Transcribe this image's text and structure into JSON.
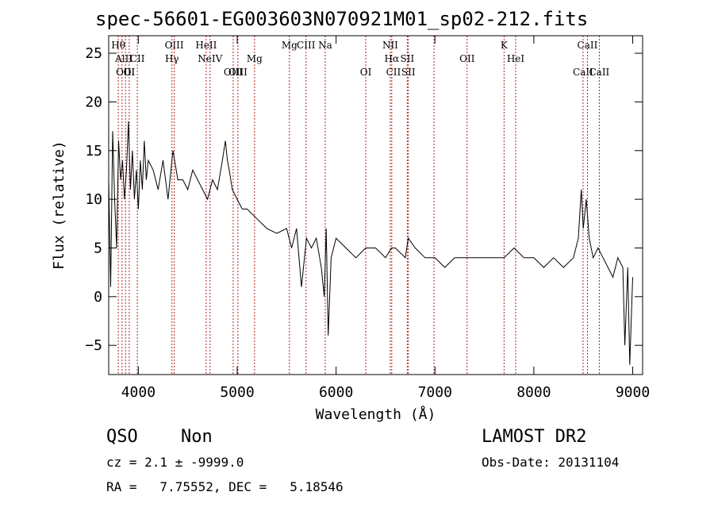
{
  "chart_data": {
    "type": "line",
    "title": "spec-56601-EG003603N070921M01_sp02-212.fits",
    "xlabel": "Wavelength (Å)",
    "ylabel": "Flux (relative)",
    "xlim": [
      3700,
      9100
    ],
    "ylim": [
      -8,
      26.8
    ],
    "xticks": [
      4000,
      5000,
      6000,
      7000,
      8000,
      9000
    ],
    "yticks": [
      -5,
      0,
      5,
      10,
      15,
      20,
      25
    ],
    "grid": false,
    "series": [
      {
        "color": "#000000",
        "x": [
          3700,
          3720,
          3740,
          3760,
          3780,
          3800,
          3820,
          3840,
          3860,
          3880,
          3900,
          3920,
          3940,
          3960,
          3980,
          4000,
          4020,
          4040,
          4060,
          4080,
          4100,
          4150,
          4200,
          4250,
          4300,
          4350,
          4400,
          4450,
          4500,
          4550,
          4600,
          4650,
          4700,
          4750,
          4800,
          4850,
          4880,
          4900,
          4920,
          4950,
          5000,
          5050,
          5100,
          5200,
          5300,
          5400,
          5500,
          5550,
          5600,
          5650,
          5700,
          5750,
          5800,
          5850,
          5880,
          5900,
          5920,
          5950,
          6000,
          6100,
          6200,
          6300,
          6400,
          6500,
          6560,
          6600,
          6700,
          6730,
          6800,
          6900,
          7000,
          7100,
          7200,
          7300,
          7400,
          7500,
          7600,
          7700,
          7800,
          7900,
          8000,
          8100,
          8200,
          8300,
          8400,
          8450,
          8480,
          8500,
          8530,
          8560,
          8600,
          8650,
          8700,
          8750,
          8800,
          8850,
          8900,
          8920,
          8950,
          8970,
          9000
        ],
        "y": [
          12,
          1,
          17,
          10,
          5,
          16,
          12,
          14,
          10,
          13,
          18,
          11,
          15,
          10,
          13,
          9,
          14,
          11,
          16,
          12,
          14,
          13,
          11,
          14,
          10,
          15,
          12,
          12,
          11,
          13,
          12,
          11,
          10,
          12,
          11,
          14,
          16,
          14,
          13,
          11,
          10,
          9,
          9,
          8,
          7,
          6.5,
          7,
          5,
          7,
          1,
          6,
          5,
          6,
          3,
          0,
          7,
          -4,
          4,
          6,
          5,
          4,
          5,
          5,
          4,
          5,
          5,
          4,
          6,
          5,
          4,
          4,
          3,
          4,
          4,
          4,
          4,
          4,
          4,
          5,
          4,
          4,
          3,
          4,
          3,
          4,
          6,
          11,
          7,
          10,
          6,
          4,
          5,
          4,
          3,
          2,
          4,
          3,
          -5,
          3,
          -7,
          2
        ]
      }
    ],
    "line_markers": [
      {
        "label": "Hθ",
        "x": 3797,
        "row": 1
      },
      {
        "label": "AlII",
        "x": 3853,
        "row": 2
      },
      {
        "label": "OIII",
        "x": 3870,
        "row": 3
      },
      {
        "label": "OI",
        "x": 3908,
        "row": 3
      },
      {
        "label": "CII",
        "x": 3990,
        "row": 2
      },
      {
        "label": "OIII",
        "x": 4363,
        "row": 1
      },
      {
        "label": "Hγ",
        "x": 4340,
        "row": 2
      },
      {
        "label": "HeII",
        "x": 4686,
        "row": 1
      },
      {
        "label": "NeIV",
        "x": 4725,
        "row": 2
      },
      {
        "label": "OIII",
        "x": 4959,
        "row": 3
      },
      {
        "label": "OIII",
        "x": 5007,
        "row": 3
      },
      {
        "label": "Mg",
        "x": 5175,
        "row": 2
      },
      {
        "label": "Mg",
        "x": 5528,
        "row": 1
      },
      {
        "label": "CIII",
        "x": 5696,
        "row": 1
      },
      {
        "label": "Na",
        "x": 5890,
        "row": 1
      },
      {
        "label": "NII",
        "x": 6548,
        "row": 1
      },
      {
        "label": "Hα",
        "x": 6563,
        "row": 2
      },
      {
        "label": "SII",
        "x": 6720,
        "row": 2
      },
      {
        "label": "OI",
        "x": 6300,
        "row": 3
      },
      {
        "label": "SII",
        "x": 6731,
        "row": 3
      },
      {
        "label": "CII",
        "x": 6580,
        "row": 3
      },
      {
        "label": "OII",
        "x": 7325,
        "row": 2
      },
      {
        "label": "K",
        "x": 7699,
        "row": 1
      },
      {
        "label": "HeI",
        "x": 7816,
        "row": 2
      },
      {
        "label": "CaII",
        "x": 8542,
        "row": 1
      },
      {
        "label": "CaII",
        "x": 8498,
        "row": 3
      },
      {
        "label": "CaII",
        "x": 8662,
        "row": 3
      }
    ],
    "marker_lines_x": [
      3797,
      3835,
      3870,
      3908,
      3990,
      4340,
      4363,
      4686,
      4725,
      4959,
      5007,
      5175,
      5528,
      5696,
      5890,
      6300,
      6548,
      6563,
      6720,
      6731,
      6990,
      7325,
      7699,
      7816,
      8498,
      8542,
      8662
    ],
    "marker_line_color": "#b22222"
  },
  "info": {
    "class_label": "QSO",
    "subclass_label": "Non",
    "cz_text": "cz = 2.1 ± -9999.0",
    "radec_text": "RA =   7.75552, DEC =   5.18546",
    "survey": "LAMOST DR2",
    "obs_date": "Obs-Date: 20131104"
  }
}
